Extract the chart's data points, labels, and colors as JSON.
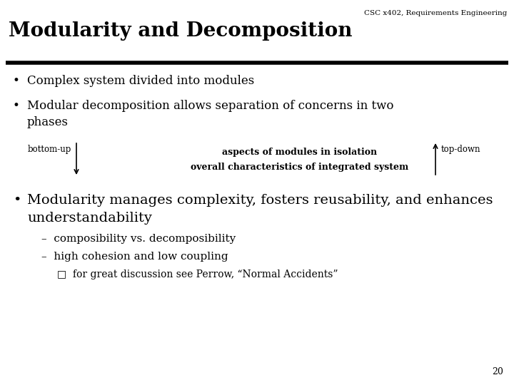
{
  "bg_color": "#ffffff",
  "header_text": "CSC x402, Requirements Engineering",
  "title": "Modularity and Decomposition",
  "title_fontsize": 20,
  "rule_color": "#000000",
  "rule_linewidth": 4,
  "header_fontsize": 7.5,
  "bullet1": "Complex system divided into modules",
  "bullet2_line1": "Modular decomposition allows separation of concerns in two",
  "bullet2_line2": "phases",
  "bullet3_line1": "Modularity manages complexity, fosters reusability, and enhances",
  "bullet3_line2": "understandability",
  "sub1": "composibility vs. decomposibility",
  "sub2": "high cohesion and low coupling",
  "sub3": "for great discussion see Perrow, “Normal Accidents”",
  "bottom_up_label": "bottom-up",
  "top_down_label": "top-down",
  "arrow_label1": "aspects of modules in isolation",
  "arrow_label2": "overall characteristics of integrated system",
  "page_number": "20",
  "text_color": "#000000",
  "font_family": "serif",
  "bullet_fontsize": 12,
  "bullet3_fontsize": 14,
  "sub_fontsize": 11,
  "subsub_fontsize": 10,
  "arrow_fontsize": 8.5
}
